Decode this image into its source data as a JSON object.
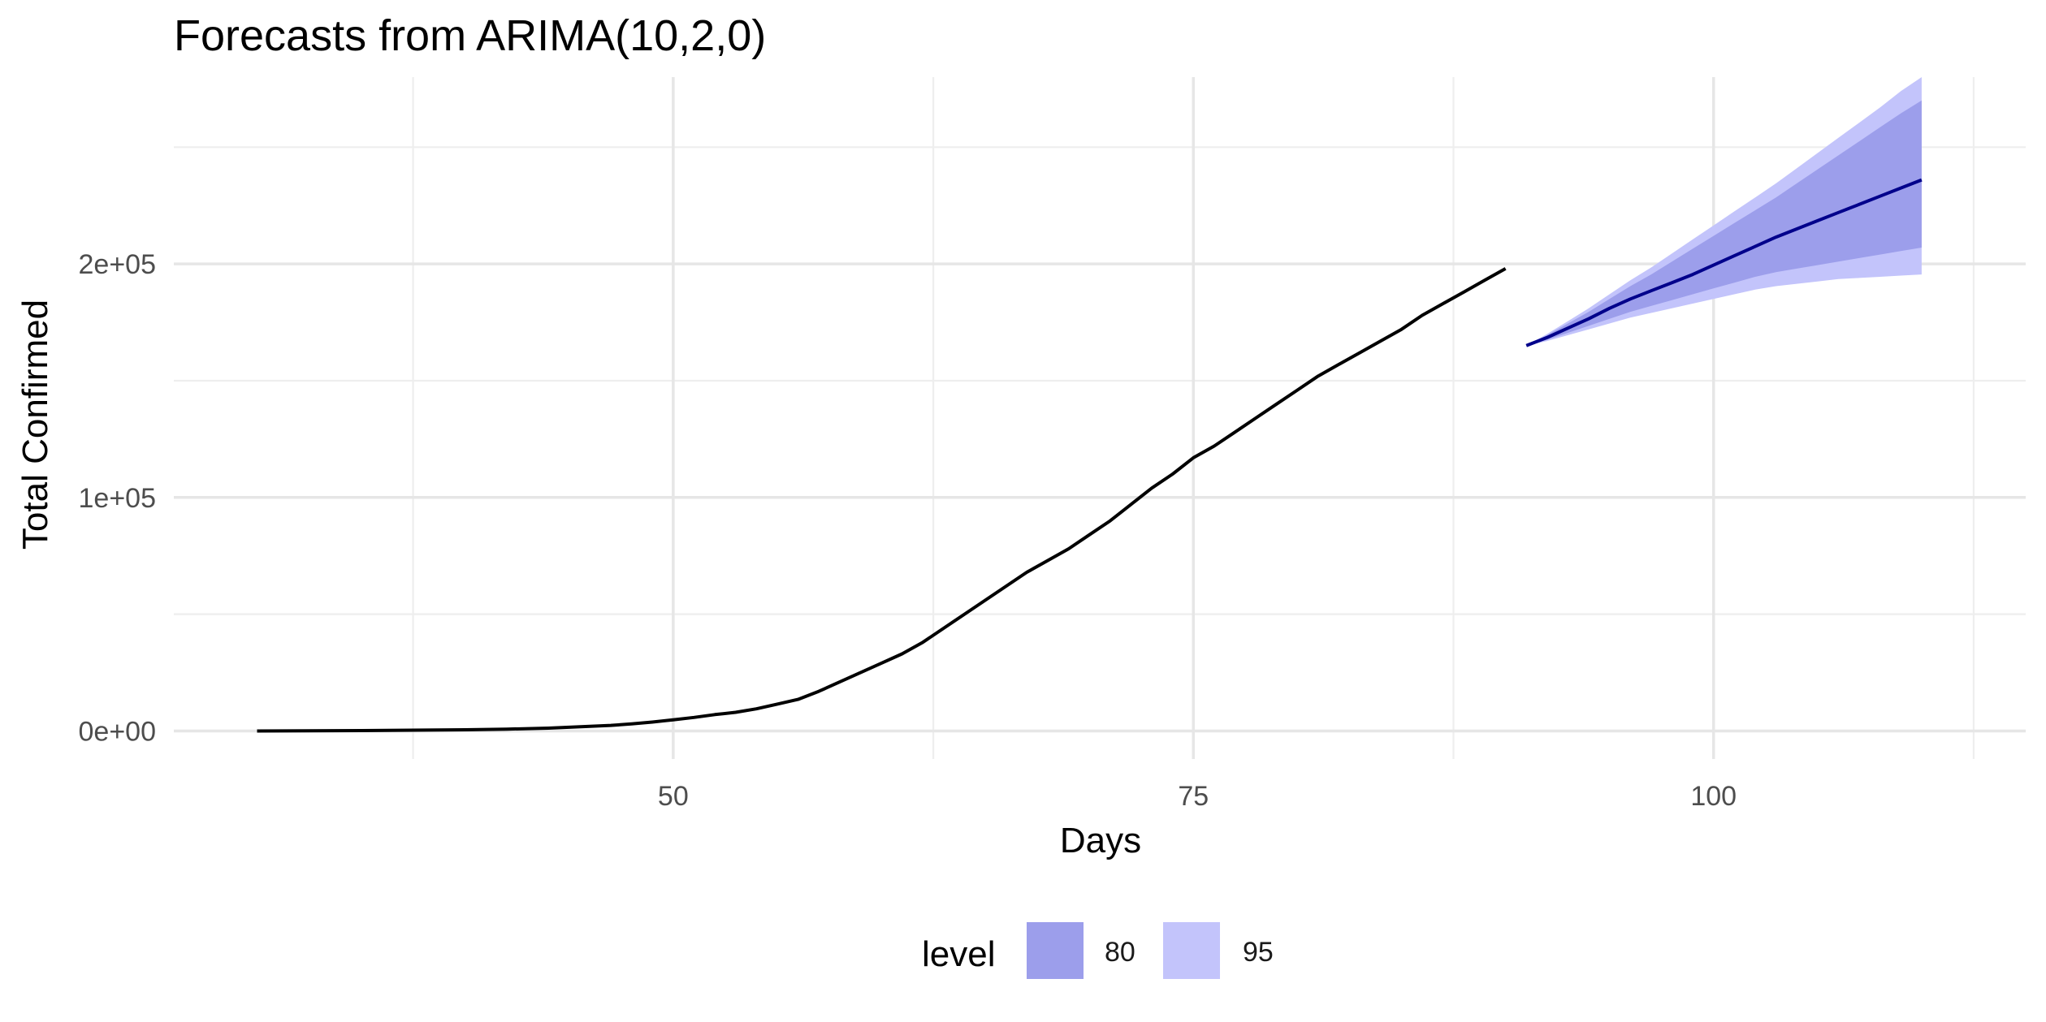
{
  "chart_data": {
    "type": "line",
    "title": "Forecasts from ARIMA(10,2,0)",
    "xlabel": "Days",
    "ylabel": "Total Confirmed",
    "xlim": [
      26,
      115
    ],
    "ylim": [
      -12000,
      280000
    ],
    "x_ticks": [
      50,
      75,
      100
    ],
    "x_tick_labels": [
      "50",
      "75",
      "100"
    ],
    "y_ticks": [
      0,
      100000,
      200000
    ],
    "y_tick_labels": [
      "0e+00",
      "1e+05",
      "2e+05"
    ],
    "x_minor_ticks": [
      37.5,
      62.5,
      87.5,
      112.5
    ],
    "y_minor_ticks": [
      50000,
      150000,
      250000
    ],
    "grid": true,
    "legend": {
      "title": "level",
      "position": "bottom",
      "items": [
        {
          "label": "80",
          "color": "#9c9eeb"
        },
        {
          "label": "95",
          "color": "#c3c4fb"
        }
      ]
    },
    "colors": {
      "observed_line": "#000000",
      "forecast_line": "#00008b",
      "band_80": "#9c9eeb",
      "band_95": "#c3c4fb"
    },
    "observed": {
      "x": [
        30,
        35,
        40,
        42,
        44,
        45,
        46,
        47,
        48,
        49,
        50,
        51,
        52,
        53,
        54,
        55,
        56,
        57,
        58,
        59,
        60,
        61,
        62,
        63,
        64,
        65,
        66,
        67,
        68,
        69,
        70,
        71,
        72,
        73,
        74,
        75,
        76,
        77,
        78,
        79,
        80,
        81,
        82,
        83,
        84,
        85,
        86,
        87,
        88,
        89,
        90
      ],
      "y": [
        0,
        150,
        500,
        800,
        1200,
        1600,
        2000,
        2400,
        3000,
        3800,
        4800,
        5800,
        7000,
        8000,
        9500,
        11500,
        13500,
        17000,
        21000,
        25000,
        29000,
        33000,
        38000,
        44000,
        50000,
        56000,
        62000,
        68000,
        73000,
        78000,
        84000,
        90000,
        97000,
        104000,
        110000,
        117000,
        122000,
        128000,
        134000,
        140000,
        146000,
        152000,
        157000,
        162000,
        167000,
        172000,
        178000,
        183000,
        188000,
        193000,
        198000
      ]
    },
    "forecast": {
      "x": [
        91,
        92,
        93,
        94,
        95,
        96,
        97,
        98,
        99,
        100,
        101,
        102,
        103,
        104,
        105,
        106,
        107,
        108,
        109,
        110
      ],
      "mean": [
        165000,
        168500,
        172500,
        176500,
        181000,
        185000,
        188500,
        192000,
        195500,
        199500,
        203500,
        207500,
        211500,
        215000,
        218500,
        222000,
        225500,
        229000,
        232500,
        236000
      ],
      "lo80": [
        165000,
        167500,
        170500,
        173500,
        176500,
        179500,
        182000,
        184500,
        187000,
        189500,
        192000,
        194500,
        196500,
        198000,
        199500,
        201000,
        202500,
        204000,
        205500,
        207000
      ],
      "hi80": [
        165000,
        169500,
        174500,
        179500,
        185000,
        190500,
        195500,
        201000,
        206500,
        212000,
        217500,
        223000,
        228500,
        234500,
        240500,
        246500,
        252500,
        258500,
        264500,
        270000
      ],
      "lo95": [
        165000,
        167000,
        169500,
        172000,
        174500,
        177000,
        179000,
        181000,
        183000,
        185000,
        187000,
        189000,
        190500,
        191500,
        192500,
        193500,
        194000,
        194500,
        195000,
        195500
      ],
      "hi95": [
        165000,
        170000,
        175500,
        181000,
        187000,
        193000,
        198500,
        204500,
        210500,
        216500,
        222500,
        228500,
        234500,
        241000,
        247500,
        254000,
        260500,
        267000,
        274000,
        280000
      ]
    }
  }
}
